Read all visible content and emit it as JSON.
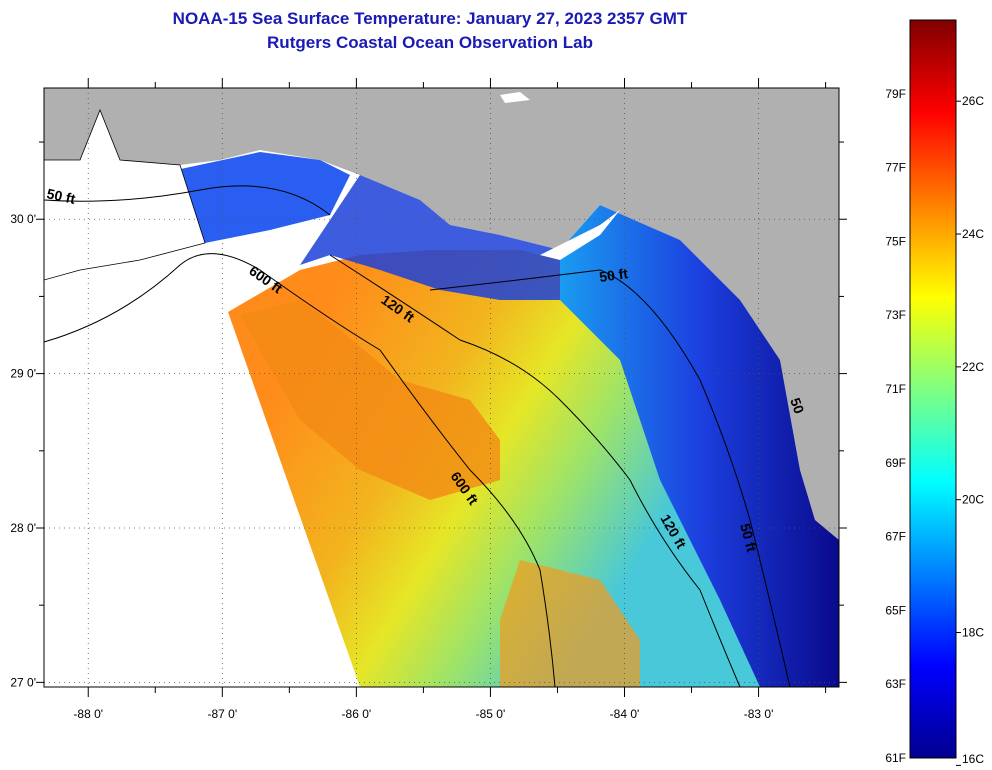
{
  "title": {
    "line1": "NOAA-15 Sea Surface Temperature:  January 27, 2023 2357 GMT",
    "line2": "Rutgers Coastal Ocean Observation Lab"
  },
  "map": {
    "lon_range": [
      -88.33,
      -82.4
    ],
    "lat_range": [
      26.97,
      30.85
    ],
    "x_ticks": [
      {
        "value": -88,
        "label": "-88 0'"
      },
      {
        "value": -87,
        "label": "-87 0'"
      },
      {
        "value": -86,
        "label": "-86 0'"
      },
      {
        "value": -85,
        "label": "-85 0'"
      },
      {
        "value": -84,
        "label": "-84 0'"
      },
      {
        "value": -83,
        "label": "-83 0'"
      }
    ],
    "y_ticks": [
      {
        "value": 30,
        "label": "30 0'"
      },
      {
        "value": 29,
        "label": "29 0'"
      },
      {
        "value": 28,
        "label": "28 0'"
      },
      {
        "value": 27,
        "label": "27 0'"
      }
    ],
    "grid": true,
    "land_color": "#b0b0b0",
    "no_data_color": "#ffffff",
    "contour_labels": [
      {
        "text": "50 ft"
      },
      {
        "text": "600 ft"
      },
      {
        "text": "120 ft"
      },
      {
        "text": "50 ft"
      },
      {
        "text": "600 ft"
      },
      {
        "text": "120 ft"
      },
      {
        "text": "50 ft"
      },
      {
        "text": "50"
      }
    ]
  },
  "colorbar": {
    "min_f": 61,
    "max_f": 81,
    "fahrenheit_labels": [
      {
        "value": 61,
        "label": "61F"
      },
      {
        "value": 63,
        "label": "63F"
      },
      {
        "value": 65,
        "label": "65F"
      },
      {
        "value": 67,
        "label": "67F"
      },
      {
        "value": 69,
        "label": "69F"
      },
      {
        "value": 71,
        "label": "71F"
      },
      {
        "value": 73,
        "label": "73F"
      },
      {
        "value": 75,
        "label": "75F"
      },
      {
        "value": 77,
        "label": "77F"
      },
      {
        "value": 79,
        "label": "79F"
      }
    ],
    "celsius_labels": [
      {
        "value": 16,
        "label": "16C"
      },
      {
        "value": 18,
        "label": "18C"
      },
      {
        "value": 20,
        "label": "20C"
      },
      {
        "value": 22,
        "label": "22C"
      },
      {
        "value": 24,
        "label": "24C"
      },
      {
        "value": 26,
        "label": "26C"
      }
    ],
    "stops": [
      "#00008f",
      "#0000ff",
      "#0080ff",
      "#00ffff",
      "#80ff80",
      "#ffff00",
      "#ff8000",
      "#ff0000",
      "#800000"
    ]
  }
}
